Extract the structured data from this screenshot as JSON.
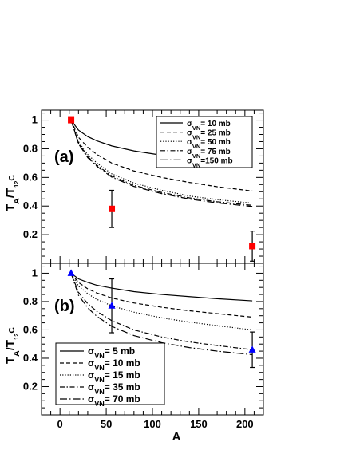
{
  "chart_data": [
    {
      "type": "line",
      "panel_label": "(a)",
      "ylabel": "T_A/T_12C",
      "xlabel": "A",
      "xlim": [
        -20,
        220
      ],
      "ylim": [
        0,
        1.07
      ],
      "x_ticks": [
        0,
        50,
        100,
        150,
        200
      ],
      "y_ticks": [
        0.2,
        0.4,
        0.6,
        0.8,
        1
      ],
      "y_tick_labels": [
        "0.2",
        "0.4",
        "0.6",
        "0.8",
        "1"
      ],
      "legend_position": "top-right",
      "series": [
        {
          "name": "σVN= 10 mb",
          "dash": "solid",
          "x": [
            12,
            20,
            30,
            40,
            56,
            80,
            110,
            140,
            170,
            208
          ],
          "y": [
            1.0,
            0.93,
            0.885,
            0.855,
            0.82,
            0.785,
            0.755,
            0.73,
            0.71,
            0.68
          ]
        },
        {
          "name": "σVN= 25 mb",
          "dash": "dashed",
          "x": [
            12,
            20,
            30,
            40,
            56,
            80,
            110,
            140,
            170,
            208
          ],
          "y": [
            1.0,
            0.88,
            0.81,
            0.76,
            0.7,
            0.645,
            0.6,
            0.565,
            0.535,
            0.505
          ]
        },
        {
          "name": "σVN= 50 mb",
          "dash": "dotted",
          "x": [
            12,
            20,
            30,
            40,
            56,
            80,
            110,
            140,
            170,
            208
          ],
          "y": [
            1.0,
            0.85,
            0.76,
            0.7,
            0.625,
            0.56,
            0.51,
            0.47,
            0.445,
            0.42
          ]
        },
        {
          "name": "σVN= 75 mb",
          "dash": "dashdot",
          "x": [
            12,
            20,
            30,
            40,
            56,
            80,
            110,
            140,
            170,
            208
          ],
          "y": [
            1.0,
            0.84,
            0.745,
            0.685,
            0.61,
            0.545,
            0.495,
            0.457,
            0.43,
            0.405
          ]
        },
        {
          "name": "σVN=150 mb",
          "dash": "longdashdot",
          "x": [
            12,
            20,
            30,
            40,
            56,
            80,
            110,
            140,
            170,
            208
          ],
          "y": [
            1.0,
            0.835,
            0.738,
            0.677,
            0.602,
            0.537,
            0.487,
            0.449,
            0.422,
            0.397
          ]
        }
      ],
      "points": {
        "marker": "square",
        "color": "#ff0000",
        "x": [
          12,
          56,
          208
        ],
        "y": [
          1.0,
          0.38,
          0.12
        ],
        "yerr": [
          0.0,
          0.13,
          0.105
        ]
      }
    },
    {
      "type": "line",
      "panel_label": "(b)",
      "ylabel": "T_A/T_12C",
      "xlabel": "A",
      "xlim": [
        -20,
        220
      ],
      "ylim": [
        0,
        1.07
      ],
      "x_ticks": [
        0,
        50,
        100,
        150,
        200
      ],
      "x_tick_labels": [
        "0",
        "50",
        "100",
        "150",
        "200"
      ],
      "y_ticks": [
        0.2,
        0.4,
        0.6,
        0.8,
        1
      ],
      "y_tick_labels": [
        "0.2",
        "0.4",
        "0.6",
        "0.8",
        "1"
      ],
      "legend_position": "bottom-left",
      "series": [
        {
          "name": "σVN= 5 mb",
          "dash": "solid",
          "x": [
            12,
            20,
            30,
            40,
            56,
            80,
            110,
            140,
            170,
            208
          ],
          "y": [
            1.0,
            0.96,
            0.935,
            0.915,
            0.895,
            0.87,
            0.85,
            0.835,
            0.82,
            0.805
          ]
        },
        {
          "name": "σVN= 10 mb",
          "dash": "dashed",
          "x": [
            12,
            20,
            30,
            40,
            56,
            80,
            110,
            140,
            170,
            208
          ],
          "y": [
            1.0,
            0.935,
            0.89,
            0.86,
            0.825,
            0.79,
            0.76,
            0.735,
            0.715,
            0.69
          ]
        },
        {
          "name": "σVN= 15 mb",
          "dash": "dotted",
          "x": [
            12,
            20,
            30,
            40,
            56,
            80,
            110,
            140,
            170,
            208
          ],
          "y": [
            1.0,
            0.91,
            0.855,
            0.815,
            0.77,
            0.725,
            0.685,
            0.655,
            0.63,
            0.6
          ]
        },
        {
          "name": "σVN= 35 mb",
          "dash": "dashdot",
          "x": [
            12,
            20,
            30,
            40,
            56,
            80,
            110,
            140,
            170,
            208
          ],
          "y": [
            1.0,
            0.865,
            0.785,
            0.73,
            0.665,
            0.6,
            0.55,
            0.515,
            0.49,
            0.46
          ]
        },
        {
          "name": "σVN= 70 mb",
          "dash": "longdashdot",
          "x": [
            12,
            20,
            30,
            40,
            56,
            80,
            110,
            140,
            170,
            208
          ],
          "y": [
            1.0,
            0.845,
            0.755,
            0.695,
            0.625,
            0.56,
            0.51,
            0.475,
            0.45,
            0.425
          ]
        }
      ],
      "points": {
        "marker": "triangle",
        "color": "#0000ff",
        "x": [
          12,
          56,
          208
        ],
        "y": [
          1.0,
          0.77,
          0.46
        ],
        "yerr": [
          0.0,
          0.19,
          0.125
        ]
      }
    }
  ]
}
